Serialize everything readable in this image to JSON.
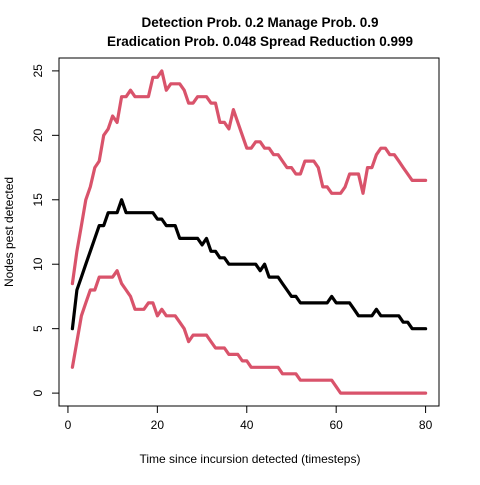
{
  "chart_data": {
    "type": "line",
    "title_lines": [
      "Detection Prob. 0.2 Manage Prob. 0.9",
      "Eradication Prob. 0.048 Spread Reduction 0.999"
    ],
    "xlabel": "Time since incursion detected (timesteps)",
    "ylabel": "Nodes pest detected",
    "xlim": [
      -2,
      83
    ],
    "ylim": [
      -1,
      26
    ],
    "x_ticks": [
      0,
      20,
      40,
      60,
      80
    ],
    "y_ticks": [
      0,
      5,
      10,
      15,
      20,
      25
    ],
    "grid": false,
    "legend": "none",
    "series": [
      {
        "role": "upper",
        "color": "#d9536b",
        "points": [
          [
            1,
            8.5
          ],
          [
            2,
            11
          ],
          [
            3,
            13
          ],
          [
            4,
            15
          ],
          [
            5,
            16
          ],
          [
            6,
            17.5
          ],
          [
            7,
            18
          ],
          [
            8,
            20
          ],
          [
            9,
            20.5
          ],
          [
            10,
            21.5
          ],
          [
            11,
            21
          ],
          [
            12,
            23
          ],
          [
            13,
            23
          ],
          [
            14,
            23.5
          ],
          [
            15,
            23
          ],
          [
            16,
            23
          ],
          [
            17,
            23
          ],
          [
            18,
            23
          ],
          [
            19,
            24.5
          ],
          [
            20,
            24.5
          ],
          [
            21,
            25
          ],
          [
            22,
            23.5
          ],
          [
            23,
            24
          ],
          [
            24,
            24
          ],
          [
            25,
            24
          ],
          [
            26,
            23.5
          ],
          [
            27,
            22.5
          ],
          [
            28,
            22.5
          ],
          [
            29,
            23
          ],
          [
            30,
            23
          ],
          [
            31,
            23
          ],
          [
            32,
            22.5
          ],
          [
            33,
            22.5
          ],
          [
            34,
            21
          ],
          [
            35,
            21
          ],
          [
            36,
            20.5
          ],
          [
            37,
            22
          ],
          [
            38,
            21
          ],
          [
            39,
            20
          ],
          [
            40,
            19
          ],
          [
            41,
            19
          ],
          [
            42,
            19.5
          ],
          [
            43,
            19.5
          ],
          [
            44,
            19
          ],
          [
            45,
            19
          ],
          [
            46,
            18.5
          ],
          [
            47,
            18.5
          ],
          [
            48,
            18
          ],
          [
            49,
            17.5
          ],
          [
            50,
            17.5
          ],
          [
            51,
            17
          ],
          [
            52,
            17
          ],
          [
            53,
            18
          ],
          [
            54,
            18
          ],
          [
            55,
            18
          ],
          [
            56,
            17.5
          ],
          [
            57,
            16
          ],
          [
            58,
            16
          ],
          [
            59,
            15.5
          ],
          [
            60,
            15.5
          ],
          [
            61,
            15.5
          ],
          [
            62,
            16
          ],
          [
            63,
            17
          ],
          [
            64,
            17
          ],
          [
            65,
            17
          ],
          [
            66,
            15.5
          ],
          [
            67,
            17.5
          ],
          [
            68,
            17.5
          ],
          [
            69,
            18.5
          ],
          [
            70,
            19
          ],
          [
            71,
            19
          ],
          [
            72,
            18.5
          ],
          [
            73,
            18.5
          ],
          [
            74,
            18
          ],
          [
            75,
            17.5
          ],
          [
            76,
            17
          ],
          [
            77,
            16.5
          ],
          [
            78,
            16.5
          ],
          [
            79,
            16.5
          ],
          [
            80,
            16.5
          ]
        ]
      },
      {
        "role": "median",
        "color": "#000000",
        "points": [
          [
            1,
            5
          ],
          [
            2,
            8
          ],
          [
            3,
            9
          ],
          [
            4,
            10
          ],
          [
            5,
            11
          ],
          [
            6,
            12
          ],
          [
            7,
            13
          ],
          [
            8,
            13
          ],
          [
            9,
            14
          ],
          [
            10,
            14
          ],
          [
            11,
            14
          ],
          [
            12,
            15
          ],
          [
            13,
            14
          ],
          [
            14,
            14
          ],
          [
            15,
            14
          ],
          [
            16,
            14
          ],
          [
            17,
            14
          ],
          [
            18,
            14
          ],
          [
            19,
            14
          ],
          [
            20,
            13.5
          ],
          [
            21,
            13.5
          ],
          [
            22,
            13
          ],
          [
            23,
            13
          ],
          [
            24,
            13
          ],
          [
            25,
            12
          ],
          [
            26,
            12
          ],
          [
            27,
            12
          ],
          [
            28,
            12
          ],
          [
            29,
            12
          ],
          [
            30,
            11.5
          ],
          [
            31,
            12
          ],
          [
            32,
            11
          ],
          [
            33,
            11
          ],
          [
            34,
            10.5
          ],
          [
            35,
            10.5
          ],
          [
            36,
            10
          ],
          [
            37,
            10
          ],
          [
            38,
            10
          ],
          [
            39,
            10
          ],
          [
            40,
            10
          ],
          [
            41,
            10
          ],
          [
            42,
            10
          ],
          [
            43,
            9.5
          ],
          [
            44,
            10
          ],
          [
            45,
            9
          ],
          [
            46,
            9
          ],
          [
            47,
            9
          ],
          [
            48,
            8.5
          ],
          [
            49,
            8
          ],
          [
            50,
            7.5
          ],
          [
            51,
            7.5
          ],
          [
            52,
            7
          ],
          [
            53,
            7
          ],
          [
            54,
            7
          ],
          [
            55,
            7
          ],
          [
            56,
            7
          ],
          [
            57,
            7
          ],
          [
            58,
            7
          ],
          [
            59,
            7.5
          ],
          [
            60,
            7
          ],
          [
            61,
            7
          ],
          [
            62,
            7
          ],
          [
            63,
            7
          ],
          [
            64,
            6.5
          ],
          [
            65,
            6
          ],
          [
            66,
            6
          ],
          [
            67,
            6
          ],
          [
            68,
            6
          ],
          [
            69,
            6.5
          ],
          [
            70,
            6
          ],
          [
            71,
            6
          ],
          [
            72,
            6
          ],
          [
            73,
            6
          ],
          [
            74,
            6
          ],
          [
            75,
            5.5
          ],
          [
            76,
            5.5
          ],
          [
            77,
            5
          ],
          [
            78,
            5
          ],
          [
            79,
            5
          ],
          [
            80,
            5
          ]
        ]
      },
      {
        "role": "lower",
        "color": "#d9536b",
        "points": [
          [
            1,
            2
          ],
          [
            2,
            4
          ],
          [
            3,
            6
          ],
          [
            4,
            7
          ],
          [
            5,
            8
          ],
          [
            6,
            8
          ],
          [
            7,
            9
          ],
          [
            8,
            9
          ],
          [
            9,
            9
          ],
          [
            10,
            9
          ],
          [
            11,
            9.5
          ],
          [
            12,
            8.5
          ],
          [
            13,
            8
          ],
          [
            14,
            7.5
          ],
          [
            15,
            6.5
          ],
          [
            16,
            6.5
          ],
          [
            17,
            6.5
          ],
          [
            18,
            7
          ],
          [
            19,
            7
          ],
          [
            20,
            6
          ],
          [
            21,
            6.5
          ],
          [
            22,
            6
          ],
          [
            23,
            6
          ],
          [
            24,
            6
          ],
          [
            25,
            5.5
          ],
          [
            26,
            5
          ],
          [
            27,
            4
          ],
          [
            28,
            4.5
          ],
          [
            29,
            4.5
          ],
          [
            30,
            4.5
          ],
          [
            31,
            4.5
          ],
          [
            32,
            4
          ],
          [
            33,
            3.5
          ],
          [
            34,
            3.5
          ],
          [
            35,
            3.5
          ],
          [
            36,
            3
          ],
          [
            37,
            3
          ],
          [
            38,
            3
          ],
          [
            39,
            2.5
          ],
          [
            40,
            2.5
          ],
          [
            41,
            2
          ],
          [
            42,
            2
          ],
          [
            43,
            2
          ],
          [
            44,
            2
          ],
          [
            45,
            2
          ],
          [
            46,
            2
          ],
          [
            47,
            2
          ],
          [
            48,
            1.5
          ],
          [
            49,
            1.5
          ],
          [
            50,
            1.5
          ],
          [
            51,
            1.5
          ],
          [
            52,
            1
          ],
          [
            53,
            1
          ],
          [
            54,
            1
          ],
          [
            55,
            1
          ],
          [
            56,
            1
          ],
          [
            57,
            1
          ],
          [
            58,
            1
          ],
          [
            59,
            1
          ],
          [
            60,
            0.5
          ],
          [
            61,
            0
          ],
          [
            62,
            0
          ],
          [
            63,
            0
          ],
          [
            64,
            0
          ],
          [
            65,
            0
          ],
          [
            66,
            0
          ],
          [
            67,
            0
          ],
          [
            68,
            0
          ],
          [
            69,
            0
          ],
          [
            70,
            0
          ],
          [
            71,
            0
          ],
          [
            72,
            0
          ],
          [
            73,
            0
          ],
          [
            74,
            0
          ],
          [
            75,
            0
          ],
          [
            76,
            0
          ],
          [
            77,
            0
          ],
          [
            78,
            0
          ],
          [
            79,
            0
          ],
          [
            80,
            0
          ]
        ]
      }
    ]
  }
}
